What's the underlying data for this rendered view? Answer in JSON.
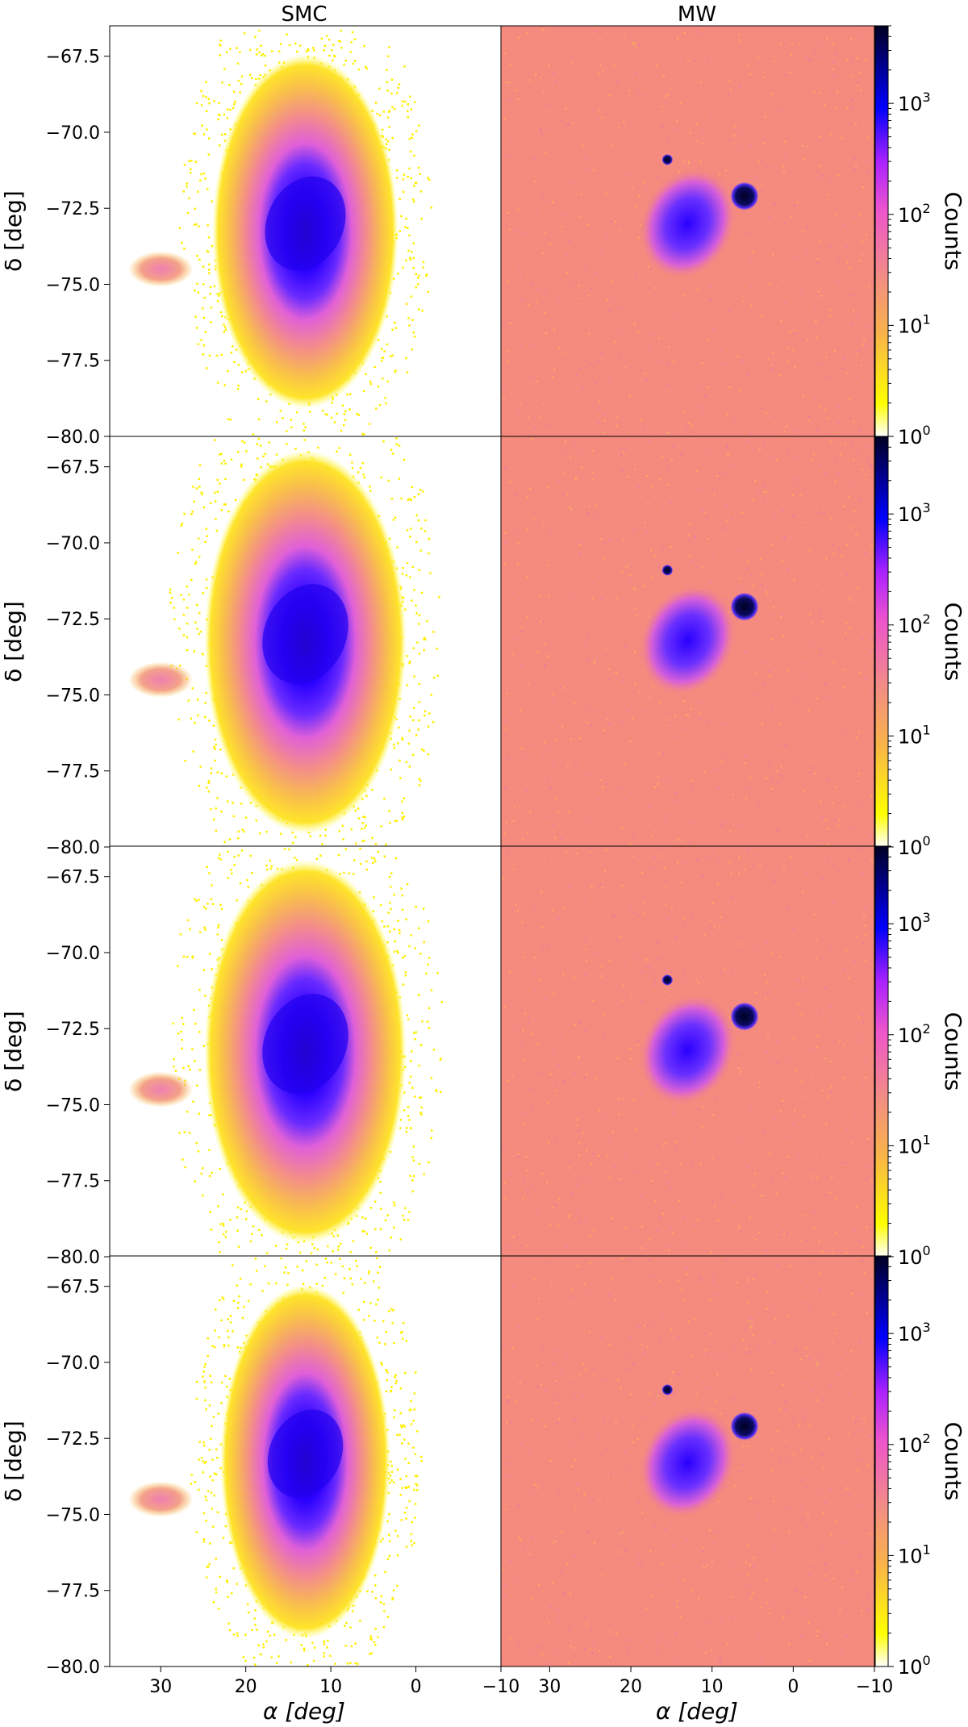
{
  "chart_data": {
    "type": "heatmap",
    "column_titles": [
      "SMC",
      "MW"
    ],
    "xlabel": "α [deg]",
    "ylabel": "δ [deg]",
    "colorbar_label": "Counts",
    "xlim": [
      36,
      -10
    ],
    "ylim": [
      -80.0,
      -66.5
    ],
    "x_ticks": [
      "30",
      "20",
      "10",
      "0",
      "−10"
    ],
    "y_ticks": [
      "−80.0",
      "−77.5",
      "−75.0",
      "−72.5",
      "−70.0",
      "−67.5"
    ],
    "colorbar_scale": "log",
    "colorbar_range": [
      1,
      5000
    ],
    "colorbar_ticks": [
      {
        "base": "10",
        "exp": "0"
      },
      {
        "base": "10",
        "exp": "1"
      },
      {
        "base": "10",
        "exp": "2"
      },
      {
        "base": "10",
        "exp": "3"
      }
    ],
    "colormap": [
      "#ffffff",
      "#ffff00",
      "#f9a64a",
      "#f28a8a",
      "#ee55cc",
      "#aa22ff",
      "#0000ff",
      "#000022"
    ],
    "rows": [
      {
        "smc": {
          "center": [
            13,
            -73.0
          ],
          "core_radius": [
            4.5,
            1.6
          ],
          "extent": [
            11.5,
            6.0
          ],
          "wing": [
            30,
            -74.5
          ]
        },
        "mw": {
          "background": "#f58a7e",
          "smc_blob": [
            13,
            -73.0
          ],
          "cluster_a": [
            6,
            -72.1
          ],
          "cluster_b": [
            15.5,
            -70.9
          ]
        }
      },
      {
        "smc": {
          "center": [
            13,
            -73.0
          ],
          "core_radius": [
            4.8,
            1.7
          ],
          "extent": [
            12.5,
            6.5
          ],
          "wing": [
            30,
            -74.5
          ]
        },
        "mw": {
          "background": "#f58a7e",
          "smc_blob": [
            13,
            -73.2
          ],
          "cluster_a": [
            6,
            -72.1
          ],
          "cluster_b": [
            15.5,
            -70.9
          ]
        }
      },
      {
        "smc": {
          "center": [
            13,
            -73.0
          ],
          "core_radius": [
            4.8,
            1.7
          ],
          "extent": [
            12.5,
            6.5
          ],
          "wing": [
            30,
            -74.5
          ]
        },
        "mw": {
          "background": "#f58a7e",
          "smc_blob": [
            13,
            -73.2
          ],
          "cluster_a": [
            6,
            -72.1
          ],
          "cluster_b": [
            15.5,
            -70.9
          ]
        }
      },
      {
        "smc": {
          "center": [
            13,
            -73.0
          ],
          "core_radius": [
            4.2,
            1.5
          ],
          "extent": [
            10.5,
            6.0
          ],
          "wing": [
            30,
            -74.5
          ]
        },
        "mw": {
          "background": "#f58a7e",
          "smc_blob": [
            13,
            -73.3
          ],
          "cluster_a": [
            6,
            -72.1
          ],
          "cluster_b": [
            15.5,
            -70.9
          ]
        }
      }
    ]
  }
}
